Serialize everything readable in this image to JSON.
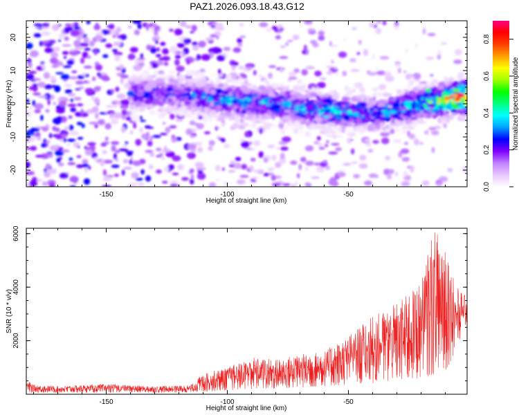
{
  "title": "PAZ1.2026.093.18.43.G12",
  "chart_data": [
    {
      "type": "heatmap",
      "xlabel": "Height of straight line (km)",
      "ylabel": "Frequency (Hz)",
      "xlim": [
        -183,
        -1
      ],
      "ylim": [
        -25,
        25
      ],
      "xticks": [
        -150,
        -100,
        -50
      ],
      "yticks": [
        -20,
        -10,
        0,
        10,
        20
      ],
      "colorbar": {
        "label": "Normalized spectral amplitude",
        "range": [
          0,
          0.9
        ],
        "ticks": [
          0.0,
          0.2,
          0.4,
          0.6,
          0.8
        ],
        "colors": [
          "#ffffff",
          "#e8c8ff",
          "#c080ff",
          "#8000ff",
          "#0000ff",
          "#00a0ff",
          "#00ffff",
          "#00ff80",
          "#00ff00",
          "#a0ff00",
          "#ffff00",
          "#ffa000",
          "#ff4000",
          "#ff0000",
          "#ff0080"
        ]
      },
      "ridge": {
        "description": "dominant energy band near 0-5 Hz strengthening toward -1 km",
        "x": [
          -120,
          -100,
          -80,
          -60,
          -40,
          -20,
          -5
        ],
        "y": [
          3,
          1,
          0,
          -2,
          -3,
          0,
          2
        ],
        "peak_amplitude": [
          0.3,
          0.45,
          0.4,
          0.5,
          0.4,
          0.5,
          0.9
        ]
      }
    },
    {
      "type": "line",
      "xlabel": "Height of straight line (km)",
      "ylabel": "SNR (10 * v/v)",
      "xlim": [
        -183,
        -1
      ],
      "ylim": [
        0,
        6200
      ],
      "xticks": [
        -150,
        -100,
        -50
      ],
      "yticks": [
        2000,
        4000,
        6000
      ],
      "color": "#ee2222",
      "envelope": {
        "x": [
          -183,
          -180,
          -170,
          -150,
          -130,
          -115,
          -110,
          -100,
          -90,
          -80,
          -70,
          -60,
          -50,
          -40,
          -30,
          -20,
          -15,
          -10,
          -5,
          -1
        ],
        "min": [
          50,
          60,
          60,
          60,
          60,
          60,
          80,
          150,
          200,
          200,
          250,
          300,
          350,
          400,
          500,
          600,
          700,
          800,
          1800,
          2700
        ],
        "max": [
          550,
          350,
          300,
          380,
          300,
          350,
          800,
          1000,
          1400,
          1300,
          1500,
          1600,
          2200,
          2900,
          3400,
          4200,
          6200,
          5800,
          4000,
          3600
        ]
      }
    }
  ]
}
